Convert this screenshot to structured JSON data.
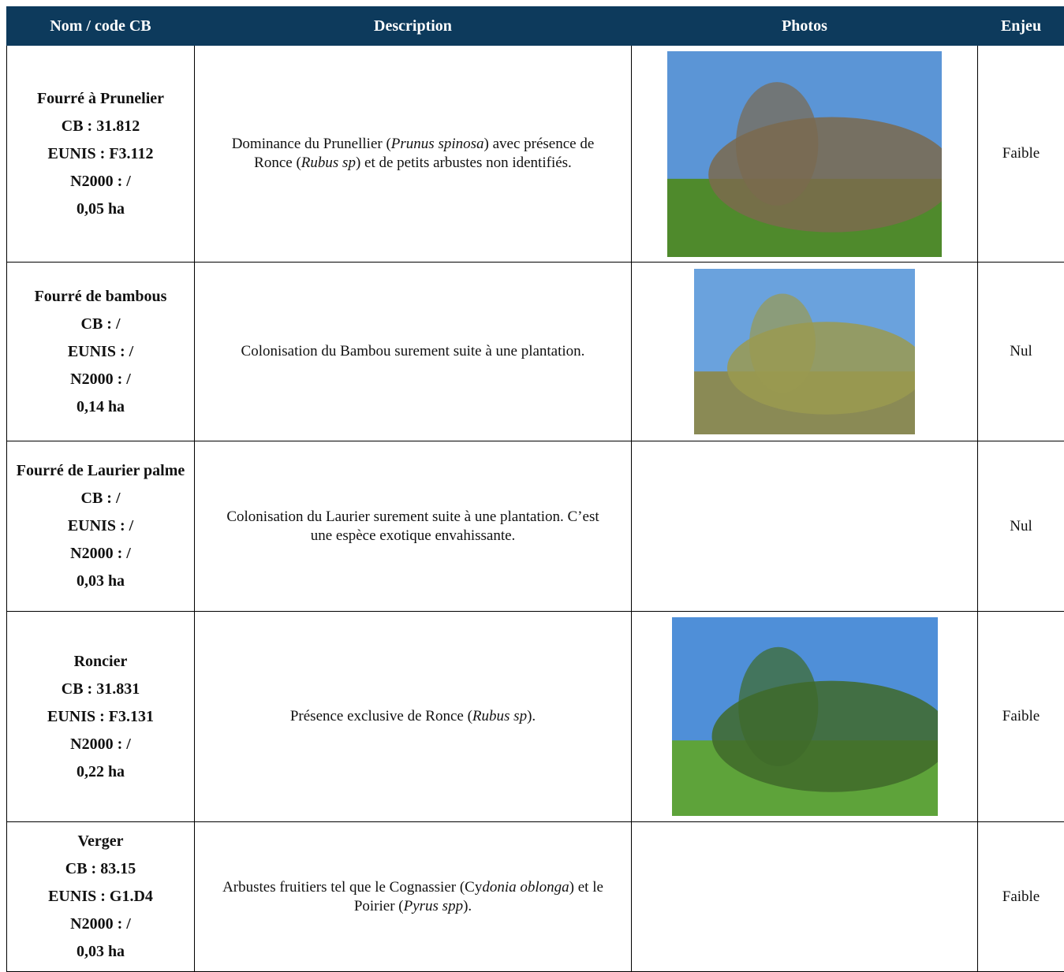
{
  "header": {
    "columns": [
      "Nom / code CB",
      "Description",
      "Photos",
      "Enjeu"
    ]
  },
  "rows": [
    {
      "name": [
        "Fourré à Prunelier",
        "CB : 31.812",
        "EUNIS : F3.112",
        "N2000 : /",
        "0,05 ha"
      ],
      "description": [
        {
          "text": "Dominance du Prunellier ("
        },
        {
          "text": "Prunus spinosa",
          "italic": true
        },
        {
          "text": ") avec présence de Ronce ("
        },
        {
          "text": "Rubus sp",
          "italic": true
        },
        {
          "text": ") et de petits arbustes non identifiés."
        }
      ],
      "enjeu": "Faible"
    },
    {
      "name": [
        "Fourré de bambous",
        "CB : /",
        "EUNIS : /",
        "N2000 : /",
        "0,14 ha"
      ],
      "description": [
        {
          "text": "Colonisation du Bambou surement suite à une plantation."
        }
      ],
      "enjeu": "Nul"
    },
    {
      "name": [
        "Fourré de Laurier palme",
        "CB : /",
        "EUNIS : /",
        "N2000 : /",
        "0,03 ha"
      ],
      "description": [
        {
          "text": "Colonisation du Laurier surement suite à une plantation. C’est une espèce exotique envahissante."
        }
      ],
      "enjeu": "Nul"
    },
    {
      "name": [
        "Roncier",
        "CB : 31.831",
        "EUNIS : F3.131",
        "N2000 : /",
        "0,22 ha"
      ],
      "description": [
        {
          "text": "Présence exclusive de Ronce ("
        },
        {
          "text": "Rubus sp",
          "italic": true
        },
        {
          "text": ")."
        }
      ],
      "enjeu": "Faible"
    },
    {
      "name": [
        "Verger",
        "CB : 83.15",
        "EUNIS : G1.D4",
        "N2000 : /",
        "0,03 ha"
      ],
      "description": [
        {
          "text": "Arbustes fruitiers tel que le Cognassier (Cy"
        },
        {
          "text": "donia oblonga",
          "italic": true
        },
        {
          "text": ") et le Poirier ("
        },
        {
          "text": "Pyrus spp",
          "italic": true
        },
        {
          "text": ")."
        }
      ],
      "enjeu": "Faible"
    }
  ]
}
